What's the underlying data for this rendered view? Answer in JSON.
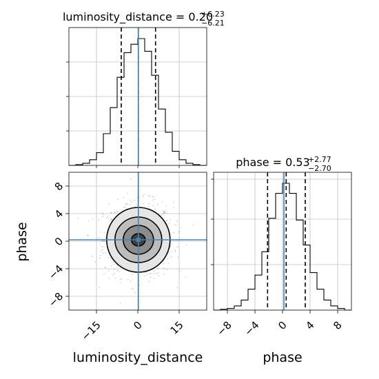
{
  "chart_data": [
    {
      "type": "histogram",
      "panel": "luminosity_distance 1D",
      "title": {
        "base": "luminosity_distance = 0.20",
        "sup": "+6.23",
        "sub": "−6.21"
      },
      "xlim": [
        -25,
        25
      ],
      "grid": true,
      "bins": [
        -25,
        -22.5,
        -20,
        -17.5,
        -15,
        -12.5,
        -10,
        -7.5,
        -5,
        -2.5,
        0,
        2.5,
        5,
        7.5,
        10,
        12.5,
        15,
        17.5,
        20,
        22.5,
        25
      ],
      "counts": [
        0,
        1,
        3,
        8,
        18,
        45,
        82,
        125,
        160,
        172,
        180,
        162,
        128,
        80,
        47,
        20,
        8,
        3,
        1,
        0
      ],
      "quantiles": [
        -6.01,
        0.2,
        6.43
      ],
      "truth": 0.2
    },
    {
      "type": "histogram",
      "panel": "phase 1D",
      "title": {
        "base": "phase = 0.53",
        "sup": "+2.77",
        "sub": "−2.70"
      },
      "xlim": [
        -10,
        10
      ],
      "xticks": [
        "−8",
        "−4",
        "0",
        "4",
        "8"
      ],
      "xtick_values": [
        -8,
        -4,
        0,
        4,
        8
      ],
      "xlabel": "phase",
      "grid": true,
      "bins": [
        -10,
        -9,
        -8,
        -7,
        -6,
        -5,
        -4,
        -3,
        -2,
        -1,
        0,
        1,
        2,
        3,
        4,
        5,
        6,
        7,
        8,
        9,
        10
      ],
      "counts": [
        0,
        1,
        2,
        5,
        12,
        25,
        42,
        70,
        110,
        140,
        152,
        140,
        108,
        78,
        45,
        25,
        12,
        5,
        2,
        0
      ],
      "quantiles": [
        -2.17,
        0.53,
        3.3
      ],
      "truth": 0.2
    },
    {
      "type": "scatter_contour",
      "panel": "2D",
      "xlabel": "luminosity_distance",
      "ylabel": "phase",
      "xlim": [
        -25,
        25
      ],
      "ylim": [
        -10,
        10
      ],
      "xticks": [
        "−15",
        "0",
        "15"
      ],
      "xtick_values": [
        -15,
        0,
        15
      ],
      "yticks": [
        "−8",
        "−4",
        "0",
        "4",
        "8"
      ],
      "ytick_values": [
        -8,
        -4,
        0,
        4,
        8
      ],
      "grid": true,
      "center": [
        0.2,
        0.2
      ],
      "contour_radii": [
        [
          2.5,
          0.9
        ],
        [
          5.5,
          2.1
        ],
        [
          8.5,
          3.3
        ],
        [
          11.5,
          4.7
        ]
      ],
      "truth": [
        0.2,
        0.2
      ],
      "colors": {
        "truth": "#4682b4",
        "scatter": "#000000",
        "grid": "#c0c0c0",
        "hist": "#000000"
      }
    }
  ]
}
